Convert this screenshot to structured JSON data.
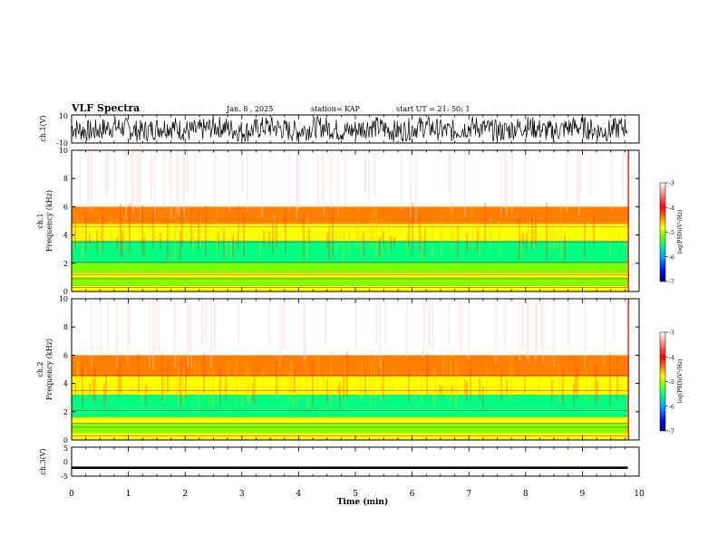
{
  "header": {
    "title": "VLF Spectra",
    "date": "Jan. 8 , 2025",
    "station": "station= KAP",
    "start": "start UT = 21: 50: 1"
  },
  "chart_data": [
    {
      "type": "line",
      "panel": "ch1-waveform",
      "ylabel": "ch.1(V)",
      "ylim": [
        -10,
        10
      ],
      "yticks": [
        "10",
        "-10"
      ],
      "series_note": "dense oscillating waveform"
    },
    {
      "type": "heatmap",
      "panel": "ch1-spectrogram",
      "ylabel_top": "ch.1",
      "ylabel": "Frequency (kHz)",
      "ylim": [
        0,
        10
      ],
      "yticks": [
        "0",
        "2",
        "4",
        "6",
        "8",
        "10"
      ],
      "bands": [
        {
          "from": 0.0,
          "to": 0.4,
          "level": -4.3
        },
        {
          "from": 0.4,
          "to": 1.0,
          "level": -5.0
        },
        {
          "from": 1.0,
          "to": 1.3,
          "level": -4.5
        },
        {
          "from": 1.3,
          "to": 2.0,
          "level": -4.9
        },
        {
          "from": 2.0,
          "to": 3.6,
          "level": -5.3
        },
        {
          "from": 3.6,
          "to": 4.8,
          "level": -4.6
        },
        {
          "from": 4.8,
          "to": 6.0,
          "level": -3.8
        },
        {
          "from": 6.0,
          "to": 10.0,
          "level": -3.2
        }
      ],
      "colorbar": {
        "label": "log(PSD)(V²/Hz)",
        "ticks": [
          "-3",
          "-4",
          "-5",
          "-6",
          "-7"
        ],
        "range": [
          -7,
          -3
        ]
      }
    },
    {
      "type": "heatmap",
      "panel": "ch2-spectrogram",
      "ylabel_top": "ch.2",
      "ylabel": "Frequency (kHz)",
      "ylim": [
        0,
        10
      ],
      "yticks": [
        "0",
        "2",
        "4",
        "6",
        "8",
        "10"
      ],
      "bands": [
        {
          "from": 0.0,
          "to": 0.5,
          "level": -4.3
        },
        {
          "from": 0.5,
          "to": 1.2,
          "level": -4.9
        },
        {
          "from": 1.2,
          "to": 1.6,
          "level": -4.6
        },
        {
          "from": 1.6,
          "to": 3.2,
          "level": -5.4
        },
        {
          "from": 3.2,
          "to": 4.5,
          "level": -4.6
        },
        {
          "from": 4.5,
          "to": 6.0,
          "level": -3.8
        },
        {
          "from": 6.0,
          "to": 10.0,
          "level": -3.2
        }
      ],
      "colorbar": {
        "label": "log(PSD)(V²/Hz)",
        "ticks": [
          "-3",
          "-4",
          "-5",
          "-6",
          "-7"
        ],
        "range": [
          -7,
          -3
        ]
      }
    },
    {
      "type": "line",
      "panel": "ch3-waveform",
      "ylabel": "ch.3(V)",
      "ylim": [
        -5,
        5
      ],
      "yticks": [
        "5",
        "0",
        "-5"
      ],
      "series_note": "thin band near -2 V"
    }
  ],
  "xaxis": {
    "label": "Time (min)",
    "range": [
      0,
      10
    ],
    "ticks": [
      "0",
      "1",
      "2",
      "3",
      "4",
      "5",
      "6",
      "7",
      "8",
      "9",
      "10"
    ],
    "data_end": 9.8
  },
  "colors": {
    "scale": [
      "#000080",
      "#0000ff",
      "#00a0ff",
      "#00ff80",
      "#80ff00",
      "#ffff00",
      "#ff8000",
      "#ff0000",
      "#ffffff"
    ]
  }
}
